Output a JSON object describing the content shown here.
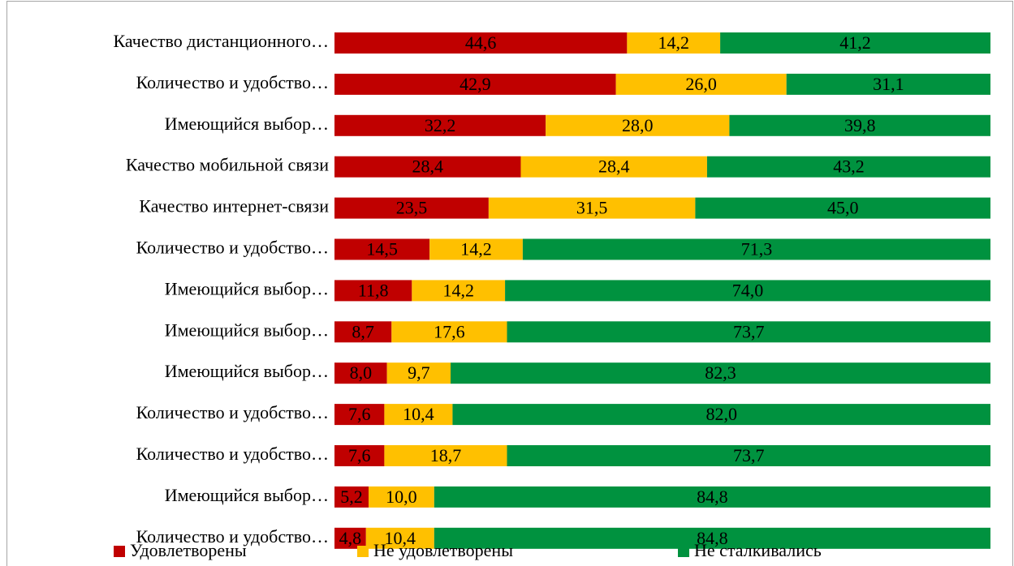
{
  "chart_data": {
    "type": "stacked-bar-horizontal",
    "categories": [
      "Качество дистанционного…",
      "Количество и удобство…",
      "Имеющийся выбор…",
      "Качество мобильной связи",
      "Качество интернет-связи",
      "Количество и удобство…",
      "Имеющийся выбор…",
      "Имеющийся выбор…",
      "Имеющийся выбор…",
      "Количество и удобство…",
      "Количество и удобство…",
      "Имеющийся выбор…",
      "Количество и удобство…"
    ],
    "series": [
      {
        "name": "Удовлетворены",
        "color": "#c00000",
        "values": [
          44.6,
          42.9,
          32.2,
          28.4,
          23.5,
          14.5,
          11.8,
          8.7,
          8.0,
          7.6,
          7.6,
          5.2,
          4.8
        ],
        "value_labels": [
          "44,6",
          "42,9",
          "32,2",
          "28,4",
          "23,5",
          "14,5",
          "11,8",
          "8,7",
          "8,0",
          "7,6",
          "7,6",
          "5,2",
          "4,8"
        ]
      },
      {
        "name": "Не удовлетворены",
        "color": "#ffc000",
        "values": [
          14.2,
          26.0,
          28.0,
          28.4,
          31.5,
          14.2,
          14.2,
          17.6,
          9.7,
          10.4,
          18.7,
          10.0,
          10.4
        ],
        "value_labels": [
          "14,2",
          "26,0",
          "28,0",
          "28,4",
          "31,5",
          "14,2",
          "14,2",
          "17,6",
          "9,7",
          "10,4",
          "18,7",
          "10,0",
          "10,4"
        ]
      },
      {
        "name": "Не сталкивались",
        "color": "#00923f",
        "values": [
          41.2,
          31.1,
          39.8,
          43.2,
          45.0,
          71.3,
          74.0,
          73.7,
          82.3,
          82.0,
          73.7,
          84.8,
          84.8
        ],
        "value_labels": [
          "41,2",
          "31,1",
          "39,8",
          "43,2",
          "45,0",
          "71,3",
          "74,0",
          "73,7",
          "82,3",
          "82,0",
          "73,7",
          "84,8",
          "84,8"
        ]
      }
    ],
    "xlim": [
      0,
      100
    ],
    "legend": "bottom"
  }
}
